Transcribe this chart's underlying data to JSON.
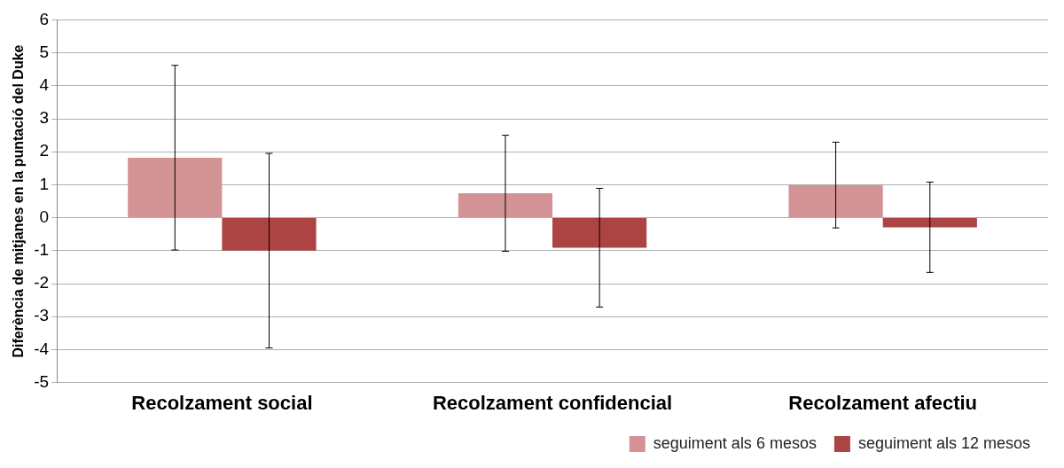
{
  "chart_data": {
    "type": "bar",
    "ylabel": "Diferència de mitjanes en la puntació del Duke",
    "categories": [
      "Recolzament social",
      "Recolzament confidencial",
      "Recolzament afectiu"
    ],
    "series": [
      {
        "name": "seguiment als 6 mesos",
        "color": "#d39394",
        "values": [
          1.82,
          0.74,
          0.99
        ],
        "errors": [
          2.8,
          1.76,
          1.3
        ]
      },
      {
        "name": "seguiment als 12 mesos",
        "color": "#ab4443",
        "values": [
          -1.0,
          -0.91,
          -0.29
        ],
        "errors": [
          2.95,
          1.8,
          1.37
        ]
      }
    ],
    "ylim": [
      -5,
      6
    ],
    "yticks": [
      -5,
      -4,
      -3,
      -2,
      -1,
      0,
      1,
      2,
      3,
      4,
      5,
      6
    ],
    "grid": "y",
    "legend": "bottom right"
  }
}
